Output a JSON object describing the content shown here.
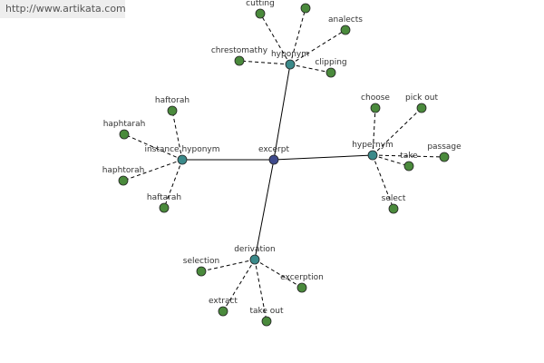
{
  "watermark": "http://www.artikata.com",
  "center": {
    "label": "excerpt"
  },
  "groups": [
    {
      "label": "hyponym",
      "leaves": [
        "cutting",
        "analects",
        "chrestomathy",
        "clipping"
      ]
    },
    {
      "label": "instance hyponym",
      "leaves": [
        "haftorah",
        "haphtarah",
        "haphtorah",
        "haftarah"
      ]
    },
    {
      "label": "hypernym",
      "leaves": [
        "choose",
        "pick out",
        "take",
        "passage",
        "select"
      ]
    },
    {
      "label": "derivation",
      "leaves": [
        "selection",
        "excerption",
        "extract",
        "take out"
      ]
    }
  ]
}
